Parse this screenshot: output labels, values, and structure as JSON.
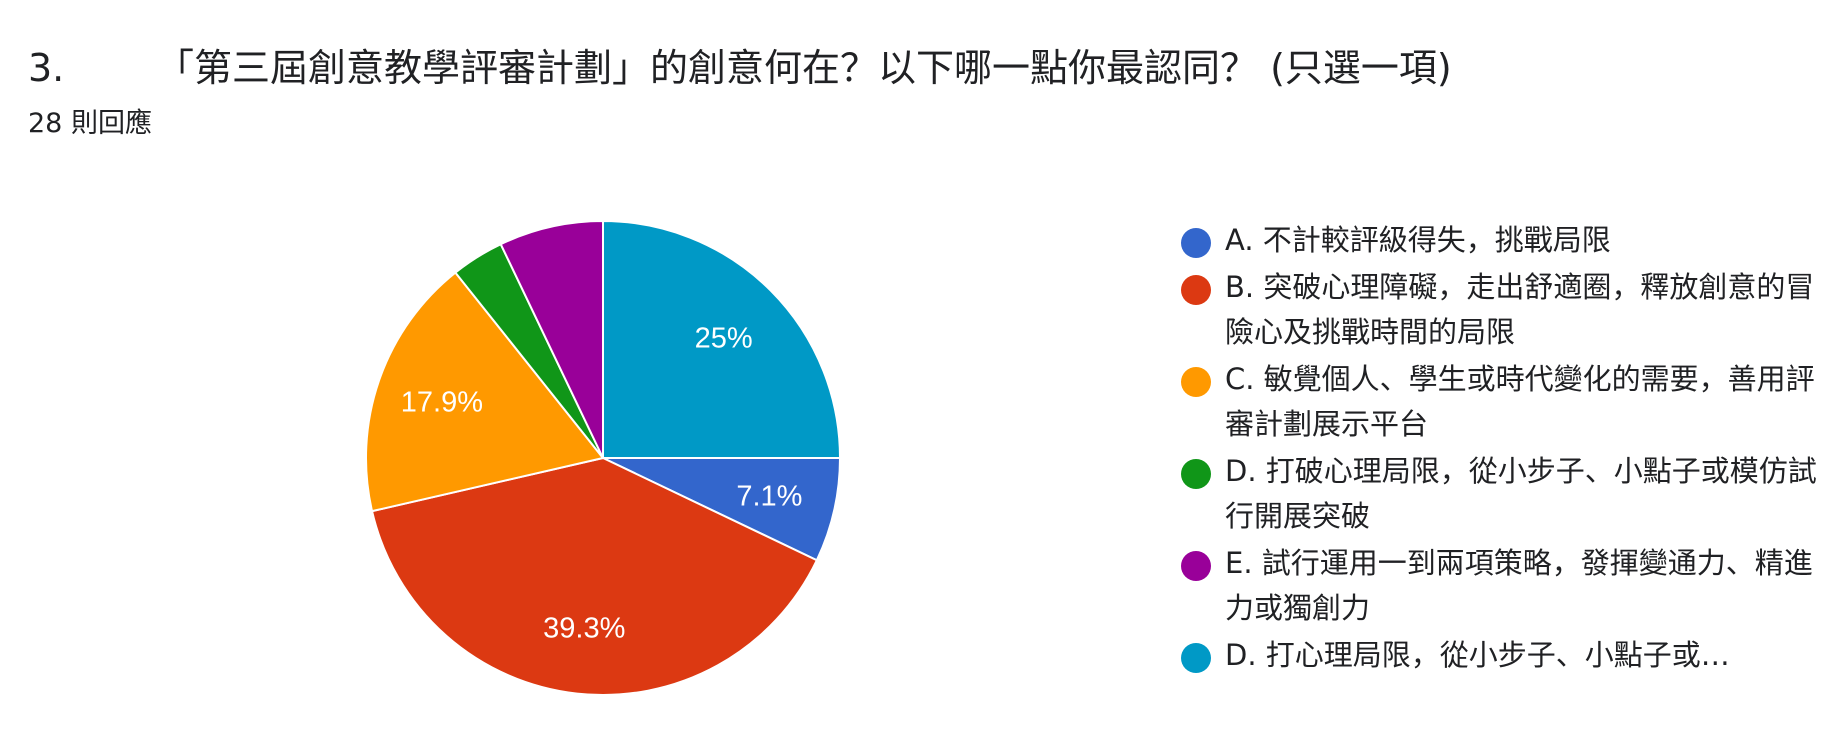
{
  "question": {
    "number": "3.",
    "title": "「第三屆創意教學評審計劃」的創意何在？以下哪一點你最認同？ (只選一項)",
    "responses": "28 則回應"
  },
  "colors": {
    "blue": "#3366cc",
    "red": "#dc3912",
    "orange": "#ff9900",
    "green": "#109618",
    "purple": "#990099",
    "teal": "#0099c6"
  },
  "chart_data": {
    "type": "pie",
    "start_angle_deg": 0,
    "direction": "clockwise",
    "slices": [
      {
        "label": "A. 不計較評級得失，挑戰局限",
        "value": 7.1,
        "display": "7.1%",
        "color": "#3366cc"
      },
      {
        "label": "B. 突破心理障礙，走出舒適圈，釋放創意的冒險心及挑戰時間的局限",
        "value": 39.3,
        "display": "39.3%",
        "color": "#dc3912"
      },
      {
        "label": "C. 敏覺個人、學生或時代變化的需要，善用評審計劃展示平台",
        "value": 17.9,
        "display": "17.9%",
        "color": "#ff9900"
      },
      {
        "label": "D. 打破心理局限，從小步子、小點子或模仿試行開展突破",
        "value": 3.6,
        "display": "",
        "color": "#109618"
      },
      {
        "label": "E. 試行運用一到兩項策略，發揮變通力、精進力或獨創力",
        "value": 7.1,
        "display": "",
        "color": "#990099"
      },
      {
        "label": "D. 打心理局限，從小步子、小點子或…",
        "value": 25.0,
        "display": "25%",
        "color": "#0099c6"
      }
    ]
  },
  "legend": {
    "items": [
      {
        "label": "A. 不計較評級得失，挑戰局限",
        "color": "#3366cc"
      },
      {
        "label": "B. 突破心理障礙，走出舒適圈，釋放創意的冒險心及挑戰時間的局限",
        "color": "#dc3912"
      },
      {
        "label": "C. 敏覺個人、學生或時代變化的需要，善用評審計劃展示平台",
        "color": "#ff9900"
      },
      {
        "label": "D. 打破心理局限，從小步子、小點子或模仿試行開展突破",
        "color": "#109618"
      },
      {
        "label": "E. 試行運用一到兩項策略，發揮變通力、精進力或獨創力",
        "color": "#990099"
      },
      {
        "label": "D. 打心理局限，從小步子、小點子或…",
        "color": "#0099c6"
      }
    ]
  }
}
